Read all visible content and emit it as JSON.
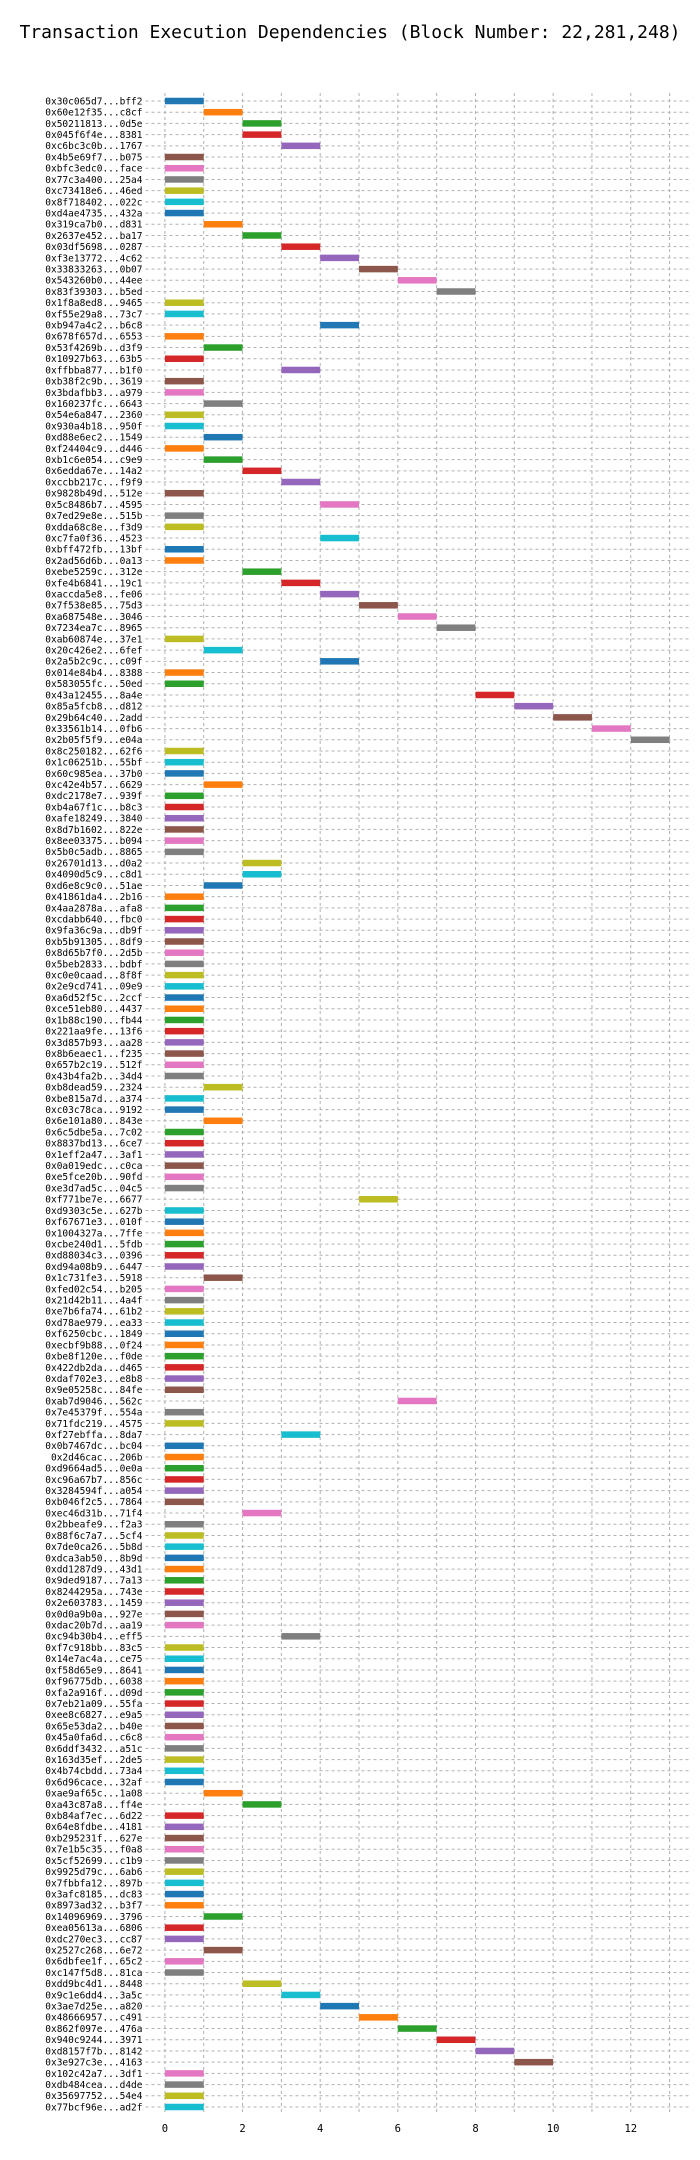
{
  "chart_data": {
    "type": "bar",
    "orientation": "horizontal-gantt",
    "title": "Transaction Execution Dependencies (Block Number: 22,281,248)",
    "xlabel": "",
    "ylabel": "",
    "xlim": [
      -0.5,
      13.5
    ],
    "xticks": [
      0,
      2,
      4,
      6,
      8,
      10,
      12
    ],
    "grid": true,
    "palette": [
      "#1f77b4",
      "#ff7f0e",
      "#2ca02c",
      "#d62728",
      "#9467bd",
      "#8c564b",
      "#e377c2",
      "#7f7f7f",
      "#bcbd22",
      "#17becf"
    ],
    "bar_duration": 1,
    "transactions": [
      {
        "label": "0x30c065d7...bff2",
        "start": 0,
        "color": 0
      },
      {
        "label": "0x60e12f35...c8cf",
        "start": 1,
        "color": 1
      },
      {
        "label": "0x50211813...0d5e",
        "start": 2,
        "color": 2
      },
      {
        "label": "0x045f6f4e...8381",
        "start": 2,
        "color": 3
      },
      {
        "label": "0xc6bc3c0b...1767",
        "start": 3,
        "color": 4
      },
      {
        "label": "0x4b5e69f7...b075",
        "start": 0,
        "color": 5
      },
      {
        "label": "0xbfc3edc0...face",
        "start": 0,
        "color": 6
      },
      {
        "label": "0x77c3a400...25a4",
        "start": 0,
        "color": 7
      },
      {
        "label": "0xc73418e6...46ed",
        "start": 0,
        "color": 8
      },
      {
        "label": "0x8f718402...022c",
        "start": 0,
        "color": 9
      },
      {
        "label": "0xd4ae4735...432a",
        "start": 0,
        "color": 0
      },
      {
        "label": "0x319ca7b0...d831",
        "start": 1,
        "color": 1
      },
      {
        "label": "0x2637e452...ba17",
        "start": 2,
        "color": 2
      },
      {
        "label": "0x03df5698...0287",
        "start": 3,
        "color": 3
      },
      {
        "label": "0xf3e13772...4c62",
        "start": 4,
        "color": 4
      },
      {
        "label": "0x33833263...0b07",
        "start": 5,
        "color": 5
      },
      {
        "label": "0x543260b0...44ee",
        "start": 6,
        "color": 6
      },
      {
        "label": "0x83f39303...b5ed",
        "start": 7,
        "color": 7
      },
      {
        "label": "0x1f8a8ed8...9465",
        "start": 0,
        "color": 8
      },
      {
        "label": "0xf55e29a8...73c7",
        "start": 0,
        "color": 9
      },
      {
        "label": "0xb947a4c2...b6c8",
        "start": 4,
        "color": 0
      },
      {
        "label": "0x678f657d...6553",
        "start": 0,
        "color": 1
      },
      {
        "label": "0x53f4269b...d3f9",
        "start": 1,
        "color": 2
      },
      {
        "label": "0x10927b63...63b5",
        "start": 0,
        "color": 3
      },
      {
        "label": "0xffbba877...b1f0",
        "start": 3,
        "color": 4
      },
      {
        "label": "0xb38f2c9b...3619",
        "start": 0,
        "color": 5
      },
      {
        "label": "0x3bdafbb3...a979",
        "start": 0,
        "color": 6
      },
      {
        "label": "0x160237fc...6643",
        "start": 1,
        "color": 7
      },
      {
        "label": "0x54e6a847...2360",
        "start": 0,
        "color": 8
      },
      {
        "label": "0x930a4b18...950f",
        "start": 0,
        "color": 9
      },
      {
        "label": "0xd88e6ec2...1549",
        "start": 1,
        "color": 0
      },
      {
        "label": "0xf24404c9...d446",
        "start": 0,
        "color": 1
      },
      {
        "label": "0xb1c6e054...c9e9",
        "start": 1,
        "color": 2
      },
      {
        "label": "0x6edda67e...14a2",
        "start": 2,
        "color": 3
      },
      {
        "label": "0xccbb217c...f9f9",
        "start": 3,
        "color": 4
      },
      {
        "label": "0x9828b49d...512e",
        "start": 0,
        "color": 5
      },
      {
        "label": "0x5c8486b7...4595",
        "start": 4,
        "color": 6
      },
      {
        "label": "0x7ed29e8e...515b",
        "start": 0,
        "color": 7
      },
      {
        "label": "0xdda68c8e...f3d9",
        "start": 0,
        "color": 8
      },
      {
        "label": "0xc7fa0f36...4523",
        "start": 4,
        "color": 9
      },
      {
        "label": "0xbff472fb...13bf",
        "start": 0,
        "color": 0
      },
      {
        "label": "0x2ad56d6b...0a13",
        "start": 0,
        "color": 1
      },
      {
        "label": "0xebe5259c...312e",
        "start": 2,
        "color": 2
      },
      {
        "label": "0xfe4b6841...19c1",
        "start": 3,
        "color": 3
      },
      {
        "label": "0xaccda5e8...fe06",
        "start": 4,
        "color": 4
      },
      {
        "label": "0x7f538e85...75d3",
        "start": 5,
        "color": 5
      },
      {
        "label": "0xa687548e...3046",
        "start": 6,
        "color": 6
      },
      {
        "label": "0x7234ea7c...8965",
        "start": 7,
        "color": 7
      },
      {
        "label": "0xab60874e...37e1",
        "start": 0,
        "color": 8
      },
      {
        "label": "0x20c426e2...6fef",
        "start": 1,
        "color": 9
      },
      {
        "label": "0x2a5b2c9c...c09f",
        "start": 4,
        "color": 0
      },
      {
        "label": "0x014e84b4...8388",
        "start": 0,
        "color": 1
      },
      {
        "label": "0x583055fc...50ed",
        "start": 0,
        "color": 2
      },
      {
        "label": "0x43a12455...8a4e",
        "start": 8,
        "color": 3
      },
      {
        "label": "0x85a5fcb8...d812",
        "start": 9,
        "color": 4
      },
      {
        "label": "0x29b64c40...2add",
        "start": 10,
        "color": 5
      },
      {
        "label": "0x33561b14...0fb6",
        "start": 11,
        "color": 6
      },
      {
        "label": "0x2b05f5f9...e04a",
        "start": 12,
        "color": 7
      },
      {
        "label": "0x8c250182...62f6",
        "start": 0,
        "color": 8
      },
      {
        "label": "0x1c06251b...55bf",
        "start": 0,
        "color": 9
      },
      {
        "label": "0x60c985ea...37b0",
        "start": 0,
        "color": 0
      },
      {
        "label": "0xc42e4b57...6629",
        "start": 1,
        "color": 1
      },
      {
        "label": "0xdc2178e7...939f",
        "start": 0,
        "color": 2
      },
      {
        "label": "0xb4a67f1c...b8c3",
        "start": 0,
        "color": 3
      },
      {
        "label": "0xafe18249...3840",
        "start": 0,
        "color": 4
      },
      {
        "label": "0x8d7b1602...822e",
        "start": 0,
        "color": 5
      },
      {
        "label": "0x8ee03375...b094",
        "start": 0,
        "color": 6
      },
      {
        "label": "0x5b0c5adb...8865",
        "start": 0,
        "color": 7
      },
      {
        "label": "0x26701d13...d0a2",
        "start": 2,
        "color": 8
      },
      {
        "label": "0x4090d5c9...c8d1",
        "start": 2,
        "color": 9
      },
      {
        "label": "0xd6e8c9c0...51ae",
        "start": 1,
        "color": 0
      },
      {
        "label": "0x41861da4...2b16",
        "start": 0,
        "color": 1
      },
      {
        "label": "0x4aa2878a...afa8",
        "start": 0,
        "color": 2
      },
      {
        "label": "0xcdabb640...fbc0",
        "start": 0,
        "color": 3
      },
      {
        "label": "0x9fa36c9a...db9f",
        "start": 0,
        "color": 4
      },
      {
        "label": "0xb5b91305...8df9",
        "start": 0,
        "color": 5
      },
      {
        "label": "0x8d65b7f0...2d5b",
        "start": 0,
        "color": 6
      },
      {
        "label": "0x5beb2833...bdbf",
        "start": 0,
        "color": 7
      },
      {
        "label": "0xc0e0caad...8f8f",
        "start": 0,
        "color": 8
      },
      {
        "label": "0x2e9cd741...09e9",
        "start": 0,
        "color": 9
      },
      {
        "label": "0xa6d52f5c...2ccf",
        "start": 0,
        "color": 0
      },
      {
        "label": "0xce51eb80...4437",
        "start": 0,
        "color": 1
      },
      {
        "label": "0x1b88c190...fb44",
        "start": 0,
        "color": 2
      },
      {
        "label": "0x221aa9fe...13f6",
        "start": 0,
        "color": 3
      },
      {
        "label": "0x3d857b93...aa28",
        "start": 0,
        "color": 4
      },
      {
        "label": "0x8b6eaec1...f235",
        "start": 0,
        "color": 5
      },
      {
        "label": "0x657b2c19...512f",
        "start": 0,
        "color": 6
      },
      {
        "label": "0x43b4fa2b...34d4",
        "start": 0,
        "color": 7
      },
      {
        "label": "0xb8dead59...2324",
        "start": 1,
        "color": 8
      },
      {
        "label": "0xbe815a7d...a374",
        "start": 0,
        "color": 9
      },
      {
        "label": "0xc03c78ca...9192",
        "start": 0,
        "color": 0
      },
      {
        "label": "0x6e101a80...843e",
        "start": 1,
        "color": 1
      },
      {
        "label": "0x6c5dbe5a...7c02",
        "start": 0,
        "color": 2
      },
      {
        "label": "0x8837bd13...6ce7",
        "start": 0,
        "color": 3
      },
      {
        "label": "0x1eff2a47...3af1",
        "start": 0,
        "color": 4
      },
      {
        "label": "0x0a019edc...c0ca",
        "start": 0,
        "color": 5
      },
      {
        "label": "0xe5fce20b...90fd",
        "start": 0,
        "color": 6
      },
      {
        "label": "0xe3d7ad5c...04c5",
        "start": 0,
        "color": 7
      },
      {
        "label": "0xf771be7e...6677",
        "start": 5,
        "color": 8
      },
      {
        "label": "0xd9303c5e...627b",
        "start": 0,
        "color": 9
      },
      {
        "label": "0xf67671e3...010f",
        "start": 0,
        "color": 0
      },
      {
        "label": "0x1004327a...7ffe",
        "start": 0,
        "color": 1
      },
      {
        "label": "0xcbe240d1...5fdb",
        "start": 0,
        "color": 2
      },
      {
        "label": "0xd88034c3...0396",
        "start": 0,
        "color": 3
      },
      {
        "label": "0xd94a08b9...6447",
        "start": 0,
        "color": 4
      },
      {
        "label": "0x1c731fe3...5918",
        "start": 1,
        "color": 5
      },
      {
        "label": "0xfed02c54...b205",
        "start": 0,
        "color": 6
      },
      {
        "label": "0x21d42b11...4a4f",
        "start": 0,
        "color": 7
      },
      {
        "label": "0xe7b6fa74...61b2",
        "start": 0,
        "color": 8
      },
      {
        "label": "0xd78ae979...ea33",
        "start": 0,
        "color": 9
      },
      {
        "label": "0xf6250cbc...1849",
        "start": 0,
        "color": 0
      },
      {
        "label": "0xecbf9b88...0f24",
        "start": 0,
        "color": 1
      },
      {
        "label": "0xbe8f120e...f0de",
        "start": 0,
        "color": 2
      },
      {
        "label": "0x422db2da...d465",
        "start": 0,
        "color": 3
      },
      {
        "label": "0xdaf702e3...e8b8",
        "start": 0,
        "color": 4
      },
      {
        "label": "0x9e05258c...84fe",
        "start": 0,
        "color": 5
      },
      {
        "label": "0xab7d9046...562c",
        "start": 6,
        "color": 6
      },
      {
        "label": "0x7e45379f...554a",
        "start": 0,
        "color": 7
      },
      {
        "label": "0x71fdc219...4575",
        "start": 0,
        "color": 8
      },
      {
        "label": "0xf27ebffa...8da7",
        "start": 3,
        "color": 9
      },
      {
        "label": "0x0b7467dc...bc04",
        "start": 0,
        "color": 0
      },
      {
        "label": "0x2d46cac...206b",
        "start": 0,
        "color": 1
      },
      {
        "label": "0xd9664ad5...0e0a",
        "start": 0,
        "color": 2
      },
      {
        "label": "0xc96a67b7...856c",
        "start": 0,
        "color": 3
      },
      {
        "label": "0x3284594f...a054",
        "start": 0,
        "color": 4
      },
      {
        "label": "0xb046f2c5...7864",
        "start": 0,
        "color": 5
      },
      {
        "label": "0xec46d31b...71f4",
        "start": 2,
        "color": 6
      },
      {
        "label": "0x2bbeafe9...f2a3",
        "start": 0,
        "color": 7
      },
      {
        "label": "0x88f6c7a7...5cf4",
        "start": 0,
        "color": 8
      },
      {
        "label": "0x7de0ca26...5b8d",
        "start": 0,
        "color": 9
      },
      {
        "label": "0xdca3ab50...8b9d",
        "start": 0,
        "color": 0
      },
      {
        "label": "0xdd1287d9...43d1",
        "start": 0,
        "color": 1
      },
      {
        "label": "0x9ded9187...7a13",
        "start": 0,
        "color": 2
      },
      {
        "label": "0x8244295a...743e",
        "start": 0,
        "color": 3
      },
      {
        "label": "0x2e603783...1459",
        "start": 0,
        "color": 4
      },
      {
        "label": "0x0d0a9b0a...927e",
        "start": 0,
        "color": 5
      },
      {
        "label": "0xdac20b7d...aa19",
        "start": 0,
        "color": 6
      },
      {
        "label": "0xc94b30b4...eff5",
        "start": 3,
        "color": 7
      },
      {
        "label": "0xf7c918bb...83c5",
        "start": 0,
        "color": 8
      },
      {
        "label": "0x14e7ac4a...ce75",
        "start": 0,
        "color": 9
      },
      {
        "label": "0xf58d65e9...8641",
        "start": 0,
        "color": 0
      },
      {
        "label": "0xf96775db...6038",
        "start": 0,
        "color": 1
      },
      {
        "label": "0xfa2a916f...d09d",
        "start": 0,
        "color": 2
      },
      {
        "label": "0x7eb21a09...55fa",
        "start": 0,
        "color": 3
      },
      {
        "label": "0xee8c6827...e9a5",
        "start": 0,
        "color": 4
      },
      {
        "label": "0x65e53da2...b40e",
        "start": 0,
        "color": 5
      },
      {
        "label": "0x45a0fa6d...c6c8",
        "start": 0,
        "color": 6
      },
      {
        "label": "0x6ddf3432...a51c",
        "start": 0,
        "color": 7
      },
      {
        "label": "0x163d35ef...2de5",
        "start": 0,
        "color": 8
      },
      {
        "label": "0x4b74cbdd...73a4",
        "start": 0,
        "color": 9
      },
      {
        "label": "0x6d96cace...32af",
        "start": 0,
        "color": 0
      },
      {
        "label": "0xae9af65c...1a08",
        "start": 1,
        "color": 1
      },
      {
        "label": "0xa43c87a8...ff4e",
        "start": 2,
        "color": 2
      },
      {
        "label": "0xb84af7ec...6d22",
        "start": 0,
        "color": 3
      },
      {
        "label": "0x64e8fdbe...4181",
        "start": 0,
        "color": 4
      },
      {
        "label": "0xb295231f...627e",
        "start": 0,
        "color": 5
      },
      {
        "label": "0x7e1b5c35...f0a8",
        "start": 0,
        "color": 6
      },
      {
        "label": "0x5cf52699...c1b9",
        "start": 0,
        "color": 7
      },
      {
        "label": "0x9925d79c...6ab6",
        "start": 0,
        "color": 8
      },
      {
        "label": "0x7fbbfa12...897b",
        "start": 0,
        "color": 9
      },
      {
        "label": "0x3afc8185...dc83",
        "start": 0,
        "color": 0
      },
      {
        "label": "0x8973ad32...b3f7",
        "start": 0,
        "color": 1
      },
      {
        "label": "0x14096969...3796",
        "start": 1,
        "color": 2
      },
      {
        "label": "0xea05613a...6806",
        "start": 0,
        "color": 3
      },
      {
        "label": "0xdc270ec3...cc87",
        "start": 0,
        "color": 4
      },
      {
        "label": "0x2527c268...6e72",
        "start": 1,
        "color": 5
      },
      {
        "label": "0x6dbfee1f...65c2",
        "start": 0,
        "color": 6
      },
      {
        "label": "0xc147f5d8...81ca",
        "start": 0,
        "color": 7
      },
      {
        "label": "0xdd9bc4d1...8448",
        "start": 2,
        "color": 8
      },
      {
        "label": "0x9c1e6dd4...3a5c",
        "start": 3,
        "color": 9
      },
      {
        "label": "0x3ae7d25e...a820",
        "start": 4,
        "color": 0
      },
      {
        "label": "0x48666957...c491",
        "start": 5,
        "color": 1
      },
      {
        "label": "0x862f097e...476a",
        "start": 6,
        "color": 2
      },
      {
        "label": "0x940c9244...3971",
        "start": 7,
        "color": 3
      },
      {
        "label": "0xd8157f7b...8142",
        "start": 8,
        "color": 4
      },
      {
        "label": "0x3e927c3e...4163",
        "start": 9,
        "color": 5
      },
      {
        "label": "0x102c42a7...3df1",
        "start": 0,
        "color": 6
      },
      {
        "label": "0xdb484cea...d4de",
        "start": 0,
        "color": 7
      },
      {
        "label": "0x35697752...54e4",
        "start": 0,
        "color": 8
      },
      {
        "label": "0x77bcf96e...ad2f",
        "start": 0,
        "color": 9
      }
    ]
  }
}
